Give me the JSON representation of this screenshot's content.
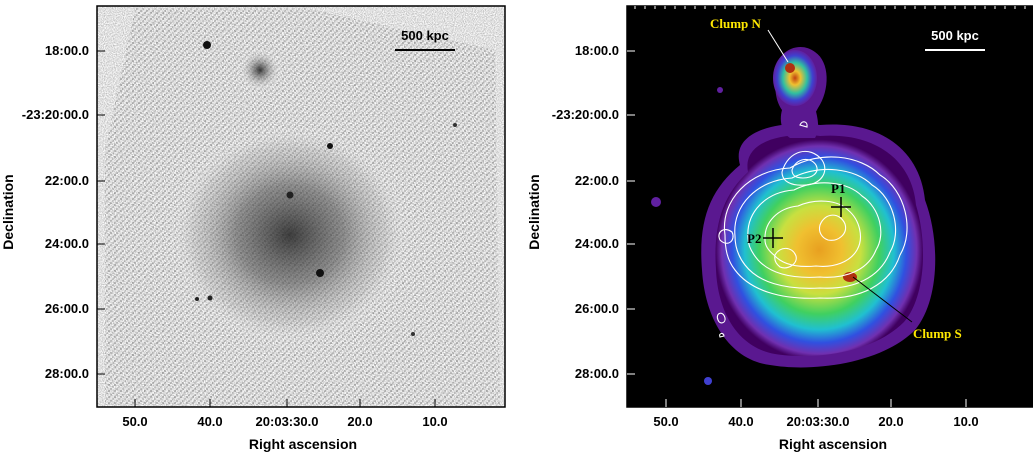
{
  "left": {
    "xlabel": "Right ascension",
    "ylabel": "Declination",
    "scalebar": "500 kpc",
    "xticks": [
      "50.0",
      "40.0",
      "20:03:30.0",
      "20.0",
      "10.0"
    ],
    "yticks": [
      "18:00.0",
      "-23:20:00.0",
      "22:00.0",
      "24:00.0",
      "26:00.0",
      "28:00.0"
    ]
  },
  "right": {
    "xlabel": "Right ascension",
    "ylabel": "Declination",
    "scalebar": "500 kpc",
    "xticks": [
      "50.0",
      "40.0",
      "20:03:30.0",
      "20.0",
      "10.0"
    ],
    "yticks": [
      "18:00.0",
      "-23:20:00.0",
      "22:00.0",
      "24:00.0",
      "26:00.0",
      "28:00.0"
    ],
    "labels": {
      "clump_n": "Clump N",
      "clump_s": "Clump S",
      "p1": "P1",
      "p2": "P2"
    },
    "colors": {
      "clump_label": "#ffe800",
      "marker": "#000000",
      "contours": "#ffffff"
    }
  }
}
